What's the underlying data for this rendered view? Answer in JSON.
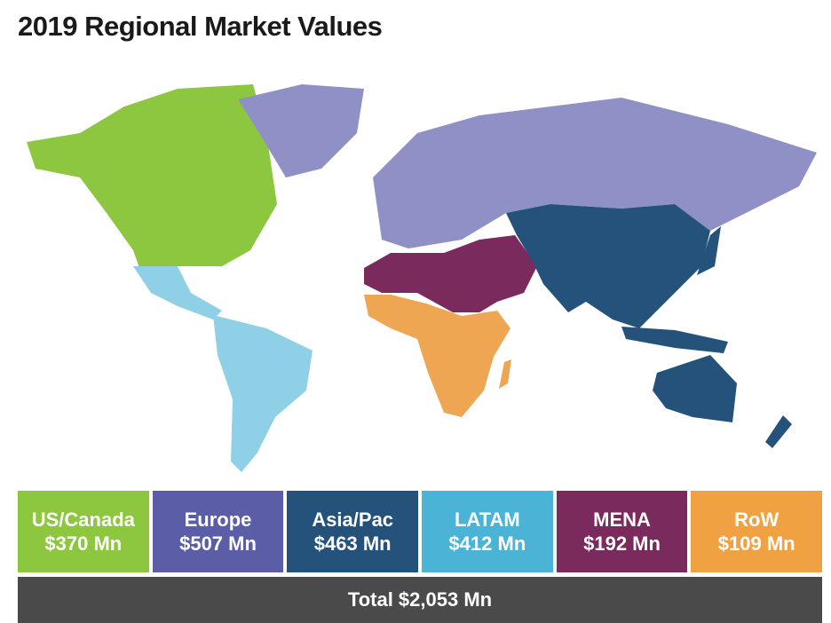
{
  "title": "2019 Regional Market Values",
  "regions": [
    {
      "name": "US/Canada",
      "value": "$370 Mn"
    },
    {
      "name": "Europe",
      "value": "$507 Mn"
    },
    {
      "name": "Asia/Pac",
      "value": "$463 Mn"
    },
    {
      "name": "LATAM",
      "value": "$412 Mn"
    },
    {
      "name": "MENA",
      "value": "$192 Mn"
    },
    {
      "name": "RoW",
      "value": "$109 Mn"
    }
  ],
  "total": "Total $2,053 Mn"
}
